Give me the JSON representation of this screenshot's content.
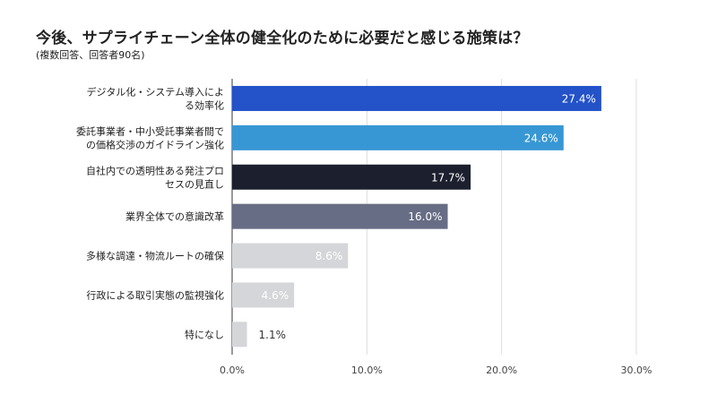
{
  "chart_data": {
    "type": "bar",
    "orientation": "horizontal",
    "title": "今後、サプライチェーン全体の健全化のために必要だと感じる施策は？",
    "subtitle": "(複数回答、回答者90名)",
    "categories": [
      [
        "デジタル化・システム導入によ",
        "る効率化"
      ],
      [
        "委託事業者・中小受託事業者間で",
        "の価格交渉のガイドライン強化"
      ],
      [
        "自社内での透明性ある発注プロ",
        "セスの見直し"
      ],
      [
        "業界全体での意識改革"
      ],
      [
        "多様な調達・物流ルートの確保"
      ],
      [
        "行政による取引実態の監視強化"
      ],
      [
        "特になし"
      ]
    ],
    "values": [
      27.4,
      24.6,
      17.7,
      16.0,
      8.6,
      4.6,
      1.1
    ],
    "data_labels": [
      "27.4%",
      "24.6%",
      "17.7%",
      "16.0%",
      "8.6%",
      "4.6%",
      "1.1%"
    ],
    "colors": [
      "#2352c9",
      "#3797d4",
      "#1c1f2d",
      "#676d84",
      "#d5d6d9",
      "#d5d6d9",
      "#d5d6d9"
    ],
    "xlim": [
      0,
      30
    ],
    "xticks": [
      "0.0%",
      "10.0%",
      "20.0%",
      "30.0%"
    ],
    "grid": "vertical",
    "legend": "none"
  }
}
